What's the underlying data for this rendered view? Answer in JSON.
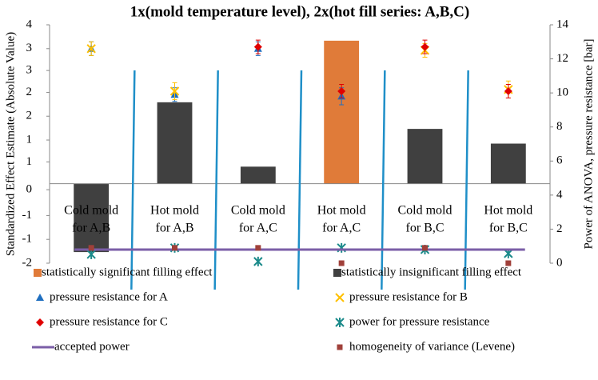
{
  "chart_data": {
    "type": "combo",
    "title": "1x(mold temperature level), 2x(hot fill series: A,B,C)",
    "y_label": "Standardized Effect Estimate (Absolute Value)",
    "y2_label": "Power of ANOVA, pressure resistance [bar]",
    "categories": [
      [
        "Cold mold",
        "for A,B"
      ],
      [
        "Hot mold",
        "for A,B"
      ],
      [
        "Cold mold",
        "for A,C"
      ],
      [
        "Hot mold",
        "for A,C"
      ],
      [
        "Cold mold",
        "for B,C"
      ],
      [
        "Hot mold",
        "for B,C"
      ]
    ],
    "ylim": [
      -2,
      4
    ],
    "yticks": [
      4,
      {
        "value": 3.4,
        "label": "3"
      },
      {
        "value": 2.85,
        "label": "3"
      },
      {
        "value": 2.3,
        "label": "2"
      },
      {
        "value": 1.7,
        "label": "2"
      },
      {
        "value": 1.1,
        "label": "1"
      },
      {
        "value": 0.55,
        "label": "1"
      },
      {
        "value": -0.15,
        "label": "0"
      },
      {
        "value": -0.8,
        "label": "-1"
      },
      {
        "value": -1.4,
        "label": "-1"
      },
      -2
    ],
    "y2lim": [
      0,
      14
    ],
    "y2ticks": [
      0,
      2,
      4,
      6,
      8,
      10,
      12,
      14
    ],
    "legend": "bottom",
    "series": [
      {
        "name": "statistically significant filling effect",
        "type": "bar",
        "color": "#e07b39",
        "values": [
          null,
          null,
          null,
          3.6,
          null,
          null
        ]
      },
      {
        "name": "statistically insignificant filling effect",
        "type": "bar",
        "color": "#404040",
        "values": [
          -1.72,
          2.05,
          0.43,
          null,
          1.38,
          1.01
        ]
      },
      {
        "name": "pressure resistance for A",
        "type": "scatter",
        "marker": "triangle",
        "axis": "y2",
        "color": "#1f6fc0",
        "values": [
          12.6,
          9.9,
          12.6,
          9.8,
          null,
          null
        ],
        "errors": [
          0.4,
          0.4,
          0.4,
          0.5,
          null,
          null
        ]
      },
      {
        "name": "pressure resistance for B",
        "type": "scatter",
        "marker": "x",
        "axis": "y2",
        "color": "#ffc000",
        "values": [
          12.6,
          10.1,
          null,
          null,
          12.5,
          10.2
        ],
        "errors": [
          0.4,
          0.5,
          null,
          null,
          0.4,
          0.5
        ]
      },
      {
        "name": "pressure resistance for C",
        "type": "scatter",
        "marker": "diamond",
        "axis": "y2",
        "color": "#e00000",
        "values": [
          null,
          null,
          12.7,
          10.1,
          12.7,
          10.1
        ],
        "errors": [
          null,
          null,
          0.4,
          0.4,
          0.4,
          0.4
        ]
      },
      {
        "name": "power for pressure resistance",
        "type": "scatter",
        "marker": "asterisk",
        "axis": "y2",
        "color": "#1a8a8a",
        "values": [
          0.52,
          0.9,
          0.1,
          0.9,
          0.8,
          0.57
        ]
      },
      {
        "name": "accepted power",
        "type": "line",
        "axis": "y2",
        "color": "#7b5ea7",
        "values": [
          0.8,
          0.8,
          0.8,
          0.8,
          0.8,
          0.8
        ]
      },
      {
        "name": "homogeneity of variance (Levene)",
        "type": "scatter",
        "marker": "square",
        "axis": "y2",
        "color": "#a0403a",
        "values": [
          0.9,
          0.9,
          0.9,
          0,
          0.9,
          0
        ]
      }
    ]
  }
}
